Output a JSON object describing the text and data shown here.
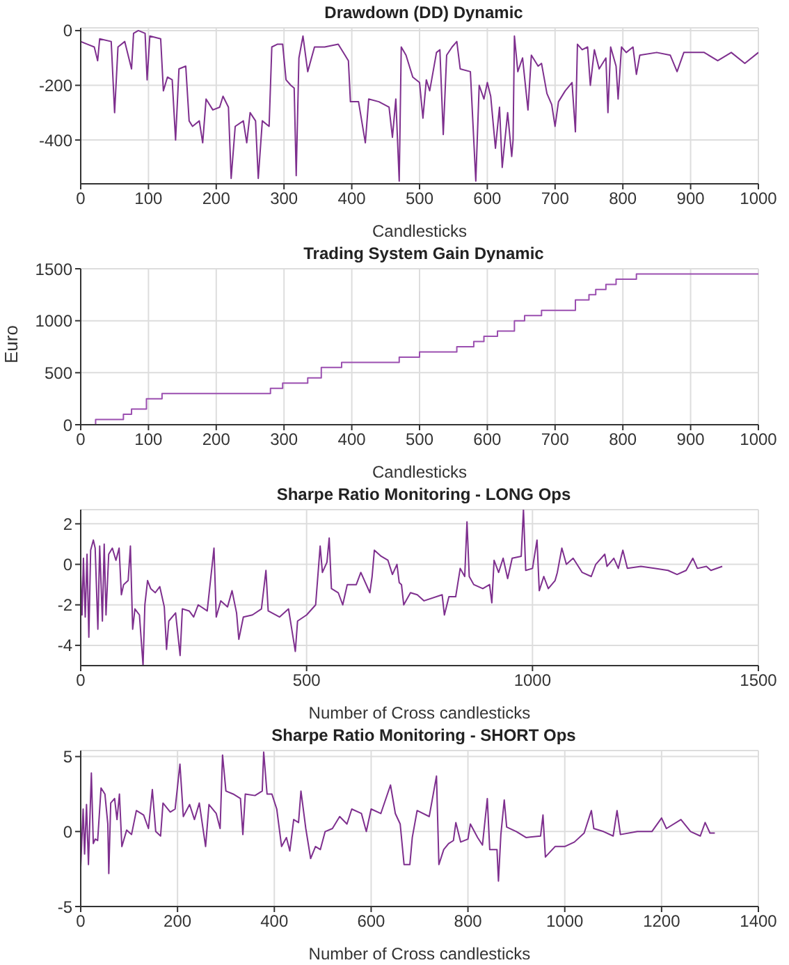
{
  "chart_data": [
    {
      "type": "line",
      "title": "Drawdown (DD) Dynamic",
      "xlabel": "Candlesticks",
      "xlim": [
        0,
        1000
      ],
      "xticks": [
        0,
        100,
        200,
        300,
        400,
        500,
        600,
        700,
        800,
        900,
        1000
      ],
      "ylim": [
        -560,
        10
      ],
      "yticks": [
        -400,
        -200,
        0
      ],
      "grid": true,
      "x": [
        0,
        10,
        20,
        25,
        28,
        45,
        50,
        55,
        65,
        75,
        78,
        85,
        95,
        98,
        102,
        118,
        122,
        128,
        135,
        140,
        145,
        155,
        160,
        165,
        175,
        180,
        185,
        195,
        205,
        210,
        218,
        222,
        228,
        240,
        245,
        250,
        258,
        262,
        268,
        278,
        282,
        290,
        298,
        303,
        310,
        315,
        318,
        322,
        328,
        335,
        345,
        360,
        380,
        390,
        395,
        398,
        410,
        420,
        425,
        440,
        455,
        460,
        465,
        470,
        473,
        480,
        490,
        500,
        505,
        510,
        515,
        525,
        530,
        535,
        540,
        548,
        555,
        560,
        575,
        583,
        588,
        595,
        600,
        605,
        612,
        618,
        622,
        630,
        636,
        638,
        640,
        645,
        652,
        660,
        665,
        675,
        680,
        688,
        695,
        700,
        705,
        715,
        725,
        730,
        733,
        740,
        748,
        752,
        758,
        765,
        775,
        778,
        782,
        790,
        793,
        798,
        805,
        815,
        820,
        825,
        850,
        870,
        880,
        890,
        920,
        940,
        960,
        980,
        1000
      ],
      "series": [
        {
          "color": "#7e2f8e",
          "values": [
            -40,
            -50,
            -60,
            -110,
            -30,
            -40,
            -300,
            -60,
            -40,
            -140,
            -10,
            0,
            -10,
            -180,
            -20,
            -30,
            -220,
            -170,
            -180,
            -400,
            -140,
            -130,
            -330,
            -350,
            -330,
            -410,
            -250,
            -290,
            -280,
            -240,
            -280,
            -540,
            -350,
            -330,
            -410,
            -300,
            -330,
            -540,
            -330,
            -350,
            -60,
            -50,
            -50,
            -180,
            -200,
            -210,
            -530,
            -100,
            -20,
            -150,
            -60,
            -60,
            -50,
            -90,
            -110,
            -260,
            -260,
            -410,
            -250,
            -260,
            -280,
            -390,
            -250,
            -550,
            -60,
            -90,
            -170,
            -190,
            -320,
            -180,
            -220,
            -80,
            -70,
            -380,
            -90,
            -60,
            -40,
            -140,
            -150,
            -550,
            -200,
            -250,
            -190,
            -240,
            -430,
            -280,
            -500,
            -300,
            -460,
            -400,
            -20,
            -150,
            -100,
            -290,
            -90,
            -130,
            -120,
            -230,
            -270,
            -350,
            -260,
            -220,
            -190,
            -370,
            -50,
            -70,
            -60,
            -200,
            -70,
            -140,
            -100,
            -300,
            -60,
            -130,
            -250,
            -60,
            -80,
            -60,
            -160,
            -90,
            -80,
            -90,
            -150,
            -80,
            -80,
            -110,
            -80,
            -120,
            -80
          ]
        }
      ]
    },
    {
      "type": "step",
      "title": "Trading System Gain Dynamic",
      "xlabel": "Candlesticks",
      "ylabel": "Euro",
      "xlim": [
        0,
        1000
      ],
      "xticks": [
        0,
        100,
        200,
        300,
        400,
        500,
        600,
        700,
        800,
        900,
        1000
      ],
      "ylim": [
        0,
        1500
      ],
      "yticks": [
        0,
        500,
        1000,
        1500
      ],
      "grid": true,
      "x": [
        0,
        22,
        63,
        75,
        97,
        120,
        280,
        298,
        335,
        355,
        385,
        470,
        500,
        555,
        580,
        595,
        615,
        640,
        655,
        680,
        730,
        750,
        760,
        775,
        790,
        820,
        1000
      ],
      "series": [
        {
          "color": "#9b4fb0",
          "values": [
            0,
            50,
            100,
            150,
            250,
            300,
            350,
            400,
            450,
            550,
            600,
            650,
            700,
            750,
            800,
            850,
            900,
            1000,
            1050,
            1100,
            1200,
            1250,
            1300,
            1350,
            1400,
            1450,
            1450
          ]
        }
      ]
    },
    {
      "type": "line",
      "title": "Sharpe Ratio Monitoring - LONG Ops",
      "xlabel": "Number of Cross candlesticks",
      "xlim": [
        0,
        1500
      ],
      "xticks": [
        0,
        500,
        1000,
        1500
      ],
      "ylim": [
        -5,
        2.7
      ],
      "yticks": [
        -4,
        -2,
        0,
        2
      ],
      "grid": true,
      "x": [
        0,
        3,
        6,
        10,
        14,
        18,
        22,
        28,
        32,
        38,
        42,
        48,
        52,
        56,
        62,
        70,
        78,
        85,
        90,
        95,
        105,
        110,
        115,
        120,
        130,
        138,
        142,
        148,
        155,
        165,
        175,
        185,
        190,
        195,
        210,
        220,
        225,
        240,
        250,
        260,
        280,
        295,
        300,
        310,
        325,
        335,
        345,
        350,
        360,
        380,
        400,
        410,
        415,
        440,
        460,
        475,
        480,
        500,
        520,
        530,
        535,
        545,
        550,
        555,
        570,
        580,
        590,
        610,
        620,
        640,
        645,
        650,
        665,
        680,
        690,
        700,
        705,
        710,
        715,
        730,
        745,
        760,
        800,
        805,
        815,
        830,
        840,
        850,
        855,
        860,
        870,
        890,
        905,
        910,
        915,
        925,
        935,
        945,
        955,
        975,
        980,
        985,
        1000,
        1010,
        1015,
        1025,
        1035,
        1050,
        1055,
        1065,
        1075,
        1090,
        1110,
        1130,
        1140,
        1160,
        1165,
        1180,
        1190,
        1200,
        1210,
        1240,
        1270,
        1300,
        1320,
        1340,
        1355,
        1365,
        1385,
        1395,
        1420
      ],
      "series": [
        {
          "color": "#7e2f8e",
          "values": [
            -0.5,
            -2.5,
            0.3,
            -2.6,
            0.5,
            -3.6,
            0.7,
            1.2,
            0.8,
            -3.2,
            0.9,
            -2.8,
            1,
            -2.5,
            0.5,
            0.8,
            0.2,
            0.8,
            -1.5,
            -1,
            -0.8,
            0.9,
            -3.2,
            -2.2,
            -2.5,
            -5,
            -2,
            -0.8,
            -1.2,
            -1.4,
            -1.1,
            -2.1,
            -4.2,
            -2.8,
            -2.4,
            -4.5,
            -2.2,
            -2.3,
            -2.6,
            -2,
            -2.3,
            0.8,
            -2.6,
            -1.8,
            -2.1,
            -1.3,
            -2.4,
            -3.7,
            -2.6,
            -2.5,
            -2.2,
            -0.3,
            -2.3,
            -2.6,
            -2.2,
            -4.3,
            -2.8,
            -2.5,
            -2,
            0.9,
            -0.4,
            0.1,
            1.3,
            -1.2,
            -1.4,
            -2,
            -1,
            -1,
            -0.4,
            -1.4,
            -0.6,
            0.7,
            0.4,
            0.2,
            -0.5,
            0,
            -0.9,
            -1,
            -2,
            -1.4,
            -1.5,
            -1.8,
            -1.5,
            -2.5,
            -1.6,
            -1.6,
            -0.2,
            -0.6,
            2.1,
            -0.6,
            -1,
            -1.2,
            -1,
            -1.9,
            0.2,
            -0.4,
            0.3,
            -0.7,
            0.3,
            0.4,
            2.7,
            -0.3,
            -0.2,
            1.2,
            -1.3,
            -0.6,
            -1.2,
            -0.8,
            -0.4,
            0.8,
            0,
            0.3,
            -0.4,
            -0.6,
            0,
            0.5,
            -0.1,
            0.3,
            -0.2,
            0.7,
            -0.2,
            -0.1,
            -0.2,
            -0.3,
            -0.5,
            -0.3,
            0.3,
            -0.2,
            -0.1,
            -0.3,
            -0.1
          ]
        }
      ]
    },
    {
      "type": "line",
      "title": "Sharpe Ratio Monitoring - SHORT Ops",
      "xlabel": "Number of Cross candlesticks",
      "xlim": [
        0,
        1400
      ],
      "xticks": [
        0,
        200,
        400,
        600,
        800,
        1000,
        1200,
        1400
      ],
      "ylim": [
        -5,
        5.4
      ],
      "yticks": [
        -5,
        0,
        5
      ],
      "grid": true,
      "x": [
        0,
        5,
        8,
        12,
        16,
        22,
        26,
        30,
        35,
        42,
        50,
        56,
        58,
        62,
        70,
        75,
        80,
        85,
        95,
        105,
        115,
        130,
        140,
        148,
        155,
        165,
        170,
        185,
        195,
        205,
        212,
        225,
        235,
        245,
        258,
        265,
        280,
        288,
        293,
        300,
        315,
        330,
        335,
        340,
        360,
        375,
        378,
        385,
        395,
        405,
        415,
        425,
        432,
        440,
        450,
        455,
        465,
        475,
        485,
        495,
        505,
        520,
        535,
        550,
        560,
        580,
        590,
        600,
        620,
        640,
        650,
        660,
        668,
        680,
        685,
        695,
        720,
        735,
        740,
        750,
        760,
        770,
        775,
        785,
        800,
        805,
        820,
        830,
        840,
        845,
        860,
        863,
        868,
        875,
        880,
        900,
        920,
        950,
        955,
        960,
        980,
        1000,
        1020,
        1040,
        1055,
        1060,
        1080,
        1100,
        1108,
        1115,
        1150,
        1180,
        1200,
        1210,
        1240,
        1260,
        1280,
        1290,
        1300,
        1310
      ],
      "series": [
        {
          "color": "#7e2f8e",
          "values": [
            -2.4,
            1.5,
            -1.5,
            1.8,
            -2.2,
            3.9,
            -0.8,
            -0.5,
            -0.6,
            2.9,
            2.5,
            0.5,
            -2.8,
            1.9,
            2.2,
            0.8,
            2.5,
            -1,
            0.1,
            -0.2,
            1.4,
            1.1,
            0.2,
            2.8,
            0,
            -0.3,
            1.9,
            1.3,
            1.5,
            4.5,
            1,
            1.8,
            0.8,
            1.9,
            -1,
            1.8,
            1.2,
            0.2,
            5.1,
            2.7,
            2.5,
            2.2,
            -0.2,
            2.5,
            2.4,
            2.7,
            5.3,
            2.5,
            2.5,
            1.5,
            -1,
            -0.4,
            -1.3,
            0.8,
            0.6,
            2.7,
            0.2,
            -1.8,
            -1,
            -1.2,
            0,
            0.2,
            1,
            0.5,
            1.5,
            1.2,
            0,
            1.5,
            1.2,
            3.1,
            1.2,
            0.5,
            -2.2,
            -2.2,
            -0.4,
            1.4,
            1,
            3.7,
            -2.2,
            -1.2,
            -0.8,
            -0.6,
            0.6,
            -0.7,
            -0.5,
            0.5,
            -0.4,
            -0.9,
            2.2,
            -1.2,
            -1.2,
            -3.3,
            -0.2,
            2.1,
            0.3,
            0,
            -0.4,
            -0.3,
            1.1,
            -1.7,
            -1,
            -1,
            -0.7,
            -0.1,
            1.4,
            0.2,
            0,
            -0.3,
            1.4,
            -0.2,
            0,
            0,
            0.9,
            0.2,
            0.8,
            0,
            -0.3,
            0.6,
            -0.1,
            -0.1
          ]
        }
      ]
    }
  ]
}
